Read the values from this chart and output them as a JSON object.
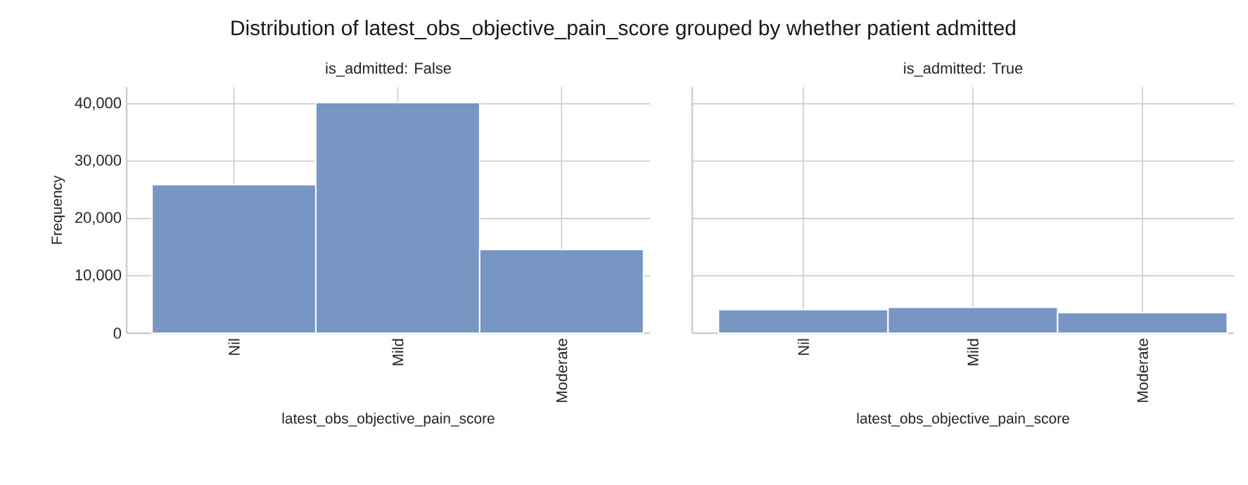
{
  "chart_data": [
    {
      "type": "bar",
      "title": "Distribution of latest_obs_objective_pain_score grouped by whether patient admitted",
      "subtitle": "is_admitted: False",
      "xlabel": "latest_obs_objective_pain_score",
      "ylabel": "Frequency",
      "categories": [
        "Nil",
        "Mild",
        "Moderate"
      ],
      "values": [
        25900,
        40200,
        14600
      ],
      "color": "#7896c4",
      "ylim": [
        0,
        42900
      ],
      "yticks": [
        0,
        {
          "value": 10000,
          "label": "10,000"
        },
        {
          "value": 20000,
          "label": "20,000"
        },
        {
          "value": 30000,
          "label": "30,000"
        },
        {
          "value": 40000,
          "label": "40,000"
        }
      ],
      "grid": true
    },
    {
      "type": "bar",
      "subtitle": "is_admitted: True",
      "xlabel": "latest_obs_objective_pain_score",
      "categories": [
        "Nil",
        "Mild",
        "Moderate"
      ],
      "values": [
        4100,
        4500,
        3600
      ],
      "color": "#7896c4",
      "ylim": [
        0,
        42900
      ],
      "yticks": [
        {
          "value": 0,
          "label": null
        },
        {
          "value": 10000,
          "label": null
        },
        {
          "value": 20000,
          "label": null
        },
        {
          "value": 30000,
          "label": null
        },
        {
          "value": 40000,
          "label": null
        }
      ],
      "grid": true,
      "tick_labels": "x"
    }
  ]
}
